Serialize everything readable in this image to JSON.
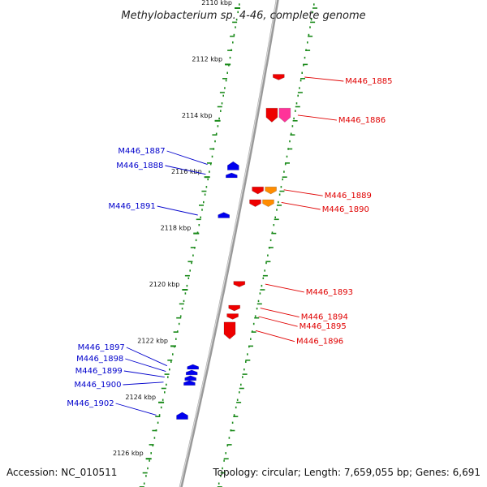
{
  "title": "Methylobacterium sp. 4-46, complete genome",
  "footer": {
    "accession": "Accession: NC_010511",
    "summary": "Topology: circular; Length: 7,659,055 bp; Genes: 6,691"
  },
  "colors": {
    "forward_label": "#e00000",
    "reverse_label": "#0000cc",
    "dotted_track": "#1a8a1a",
    "backbone": "#999999"
  },
  "ticks": [
    {
      "label": "2110 kbp",
      "pos": 2110
    },
    {
      "label": "2112 kbp",
      "pos": 2112
    },
    {
      "label": "2114 kbp",
      "pos": 2114
    },
    {
      "label": "2116 kbp",
      "pos": 2116
    },
    {
      "label": "2118 kbp",
      "pos": 2118
    },
    {
      "label": "2120 kbp",
      "pos": 2120
    },
    {
      "label": "2122 kbp",
      "pos": 2122
    },
    {
      "label": "2124 kbp",
      "pos": 2124
    },
    {
      "label": "2126 kbp",
      "pos": 2126
    }
  ],
  "genes_forward": [
    {
      "name": "M446_1885",
      "start": 2112.35,
      "end": 2112.55,
      "color": "#ee0000"
    },
    {
      "name": "M446_1886",
      "start": 2113.55,
      "end": 2114.05,
      "color": "#ee0000"
    },
    {
      "name": "M446_1886b",
      "start": 2113.55,
      "end": 2114.05,
      "color": "#ff3399",
      "offset": 1
    },
    {
      "name": "M446_1889",
      "start": 2116.35,
      "end": 2116.6,
      "color": "#ee0000"
    },
    {
      "name": "M446_1889b",
      "start": 2116.35,
      "end": 2116.6,
      "color": "#ff8c00",
      "offset": 1
    },
    {
      "name": "M446_1890",
      "start": 2116.8,
      "end": 2117.05,
      "color": "#ee0000"
    },
    {
      "name": "M446_1890b",
      "start": 2116.8,
      "end": 2117.05,
      "color": "#ff8c00",
      "offset": 1
    },
    {
      "name": "M446_1893",
      "start": 2119.7,
      "end": 2119.9,
      "color": "#ee0000"
    },
    {
      "name": "M446_1894",
      "start": 2120.55,
      "end": 2120.75,
      "color": "#ee0000"
    },
    {
      "name": "M446_1895",
      "start": 2120.85,
      "end": 2121.05,
      "color": "#ee0000"
    },
    {
      "name": "M446_1896",
      "start": 2121.15,
      "end": 2121.75,
      "color": "#ee0000"
    }
  ],
  "labels_forward": [
    {
      "text": "M446_1885",
      "gene_pos": 2112.45
    },
    {
      "text": "M446_1886",
      "gene_pos": 2113.8
    },
    {
      "text": "M446_1889",
      "gene_pos": 2116.45
    },
    {
      "text": "M446_1890",
      "gene_pos": 2116.9
    },
    {
      "text": "M446_1893",
      "gene_pos": 2119.8
    },
    {
      "text": "M446_1894",
      "gene_pos": 2120.65
    },
    {
      "text": "M446_1895",
      "gene_pos": 2120.95
    },
    {
      "text": "M446_1896",
      "gene_pos": 2121.45
    }
  ],
  "genes_reverse": [
    {
      "name": "M446_1887",
      "start": 2115.45,
      "end": 2115.75,
      "color": "#0000ee"
    },
    {
      "name": "M446_1888",
      "start": 2115.85,
      "end": 2115.98,
      "color": "#0000ee"
    },
    {
      "name": "M446_1891",
      "start": 2117.25,
      "end": 2117.45,
      "color": "#0000ee"
    },
    {
      "name": "M446_1897",
      "start": 2122.65,
      "end": 2122.78,
      "color": "#0000ee"
    },
    {
      "name": "M446_1898",
      "start": 2122.85,
      "end": 2122.98,
      "color": "#0000ee"
    },
    {
      "name": "M446_1899",
      "start": 2123.05,
      "end": 2123.18,
      "color": "#0000ee"
    },
    {
      "name": "M446_1900",
      "start": 2123.22,
      "end": 2123.35,
      "color": "#0000ee"
    },
    {
      "name": "M446_1902",
      "start": 2124.35,
      "end": 2124.6,
      "color": "#0000ee"
    }
  ],
  "labels_reverse": [
    {
      "text": "M446_1887",
      "gene_pos": 2115.55
    },
    {
      "text": "M446_1888",
      "gene_pos": 2115.9
    },
    {
      "text": "M446_1891",
      "gene_pos": 2117.35
    },
    {
      "text": "M446_1897",
      "gene_pos": 2122.7
    },
    {
      "text": "M446_1898",
      "gene_pos": 2122.9
    },
    {
      "text": "M446_1899",
      "gene_pos": 2123.1
    },
    {
      "text": "M446_1900",
      "gene_pos": 2123.28
    },
    {
      "text": "M446_1902",
      "gene_pos": 2124.45
    }
  ]
}
